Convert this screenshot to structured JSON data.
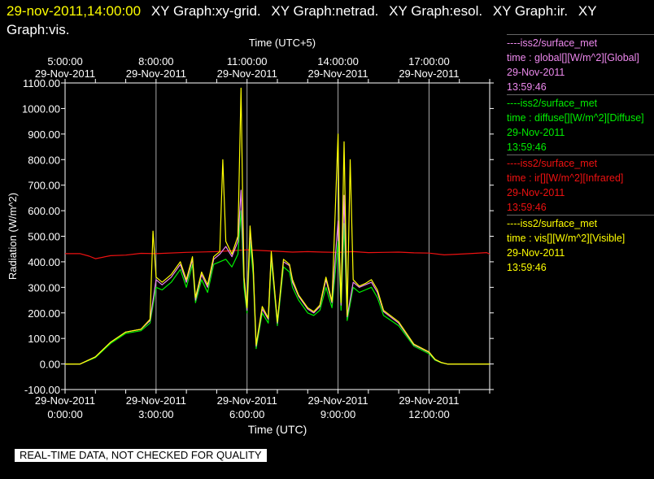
{
  "header": {
    "timestamp": "29-nov-2011,14:00:00",
    "graphs": [
      "XY Graph:xy-grid.",
      "XY Graph:netrad.",
      "XY Graph:esol.",
      "XY Graph:ir.",
      "XY Graph:vis."
    ]
  },
  "footer": {
    "notice": "REAL-TIME DATA, NOT CHECKED FOR QUALITY"
  },
  "legend": [
    {
      "source": "----iss2/surface_met",
      "label": "time : global[][W/m^2][Global]",
      "date": "29-Nov-2011",
      "time": "13:59:46",
      "color": "#ee88ee"
    },
    {
      "source": "----iss2/surface_met",
      "label": "time : diffuse[][W/m^2][Diffuse]",
      "date": "29-Nov-2011",
      "time": "13:59:46",
      "color": "#00ee00"
    },
    {
      "source": "----iss2/surface_met",
      "label": "time : ir[][W/m^2][Infrared]",
      "date": "29-Nov-2011",
      "time": "13:59:46",
      "color": "#ee1111"
    },
    {
      "source": "----iss2/surface_met",
      "label": "time : vis[][W/m^2][Visible]",
      "date": "29-Nov-2011",
      "time": "13:59:46",
      "color": "#ffff00"
    }
  ],
  "chart_data": {
    "type": "line",
    "ylabel": "Radiation (W/m^2)",
    "xlabel": "Time (UTC)",
    "top_xlabel": "Time (UTC+5)",
    "ylim": [
      -100,
      1100
    ],
    "xlim": [
      0,
      14
    ],
    "y_ticks": [
      -100,
      0,
      100,
      200,
      300,
      400,
      500,
      600,
      700,
      800,
      900,
      1000,
      1100
    ],
    "y_tick_labels": [
      "-100.00",
      "0.00",
      "100.00",
      "200.00",
      "300.00",
      "400.00",
      "500.00",
      "600.00",
      "700.00",
      "800.00",
      "900.00",
      "1000.00",
      "1100.00"
    ],
    "bottom_ticks": [
      {
        "x": 0,
        "date": "29-Nov-2011",
        "time": "0:00:00"
      },
      {
        "x": 3,
        "date": "29-Nov-2011",
        "time": "3:00:00"
      },
      {
        "x": 6,
        "date": "29-Nov-2011",
        "time": "6:00:00"
      },
      {
        "x": 9,
        "date": "29-Nov-2011",
        "time": "9:00:00"
      },
      {
        "x": 12,
        "date": "29-Nov-2011",
        "time": "12:00:00"
      }
    ],
    "top_ticks": [
      {
        "x": 0,
        "time": "5:00:00",
        "date": "29-Nov-2011"
      },
      {
        "x": 3,
        "time": "8:00:00",
        "date": "29-Nov-2011"
      },
      {
        "x": 6,
        "time": "11:00:00",
        "date": "29-Nov-2011"
      },
      {
        "x": 9,
        "time": "14:00:00",
        "date": "29-Nov-2011"
      },
      {
        "x": 12,
        "time": "17:00:00",
        "date": "29-Nov-2011"
      }
    ],
    "grid_x": [
      3,
      6,
      9,
      12
    ],
    "series": [
      {
        "name": "ir",
        "color": "#ee1111",
        "x": [
          0,
          0.5,
          0.8,
          1,
          1.5,
          2,
          2.5,
          3,
          4,
          5,
          6,
          6.5,
          7,
          7.5,
          8,
          8.5,
          9,
          9.5,
          10,
          10.5,
          11,
          11.5,
          12,
          12.5,
          13,
          13.5,
          13.9,
          14
        ],
        "y": [
          432,
          432,
          422,
          412,
          424,
          426,
          433,
          432,
          437,
          440,
          447,
          444,
          441,
          438,
          440,
          438,
          437,
          440,
          436,
          437,
          438,
          435,
          434,
          427,
          430,
          433,
          436,
          430
        ]
      },
      {
        "name": "diffuse",
        "color": "#00ee00",
        "x": [
          0,
          0.5,
          1,
          1.5,
          2,
          2.5,
          2.8,
          3,
          3.2,
          3.5,
          3.8,
          4,
          4.2,
          4.3,
          4.5,
          4.7,
          4.9,
          5.1,
          5.3,
          5.5,
          5.7,
          5.8,
          5.9,
          6,
          6.1,
          6.2,
          6.3,
          6.5,
          6.7,
          6.8,
          7,
          7.2,
          7.4,
          7.5,
          7.7,
          8,
          8.2,
          8.4,
          8.6,
          8.8,
          9,
          9.1,
          9.2,
          9.3,
          9.5,
          9.7,
          9.9,
          10.1,
          10.3,
          10.5,
          11,
          11.5,
          12,
          12.2,
          12.4,
          12.6,
          13,
          13.5,
          14
        ],
        "y": [
          0,
          0,
          25,
          80,
          120,
          130,
          160,
          300,
          290,
          320,
          370,
          300,
          390,
          240,
          330,
          280,
          390,
          400,
          410,
          380,
          430,
          600,
          300,
          200,
          480,
          350,
          60,
          200,
          160,
          410,
          150,
          380,
          360,
          300,
          250,
          200,
          190,
          210,
          300,
          220,
          480,
          210,
          550,
          170,
          300,
          280,
          290,
          300,
          260,
          190,
          150,
          70,
          40,
          15,
          5,
          0,
          0,
          0,
          0
        ]
      },
      {
        "name": "global",
        "color": "#ee88ee",
        "x": [
          0,
          0.5,
          1,
          1.5,
          2,
          2.5,
          2.8,
          3,
          3.2,
          3.5,
          3.8,
          4,
          4.2,
          4.3,
          4.5,
          4.7,
          4.9,
          5.1,
          5.3,
          5.5,
          5.7,
          5.8,
          5.9,
          6,
          6.1,
          6.2,
          6.3,
          6.5,
          6.7,
          6.8,
          7,
          7.2,
          7.4,
          7.5,
          7.7,
          8,
          8.2,
          8.4,
          8.6,
          8.8,
          9,
          9.1,
          9.2,
          9.3,
          9.5,
          9.7,
          9.9,
          10.1,
          10.3,
          10.5,
          11,
          11.5,
          12,
          12.2,
          12.4,
          12.6,
          13,
          13.5,
          14
        ],
        "y": [
          0,
          0,
          28,
          85,
          125,
          136,
          170,
          330,
          310,
          340,
          390,
          320,
          410,
          250,
          350,
          300,
          410,
          430,
          460,
          420,
          480,
          680,
          330,
          210,
          520,
          380,
          70,
          215,
          175,
          430,
          160,
          400,
          385,
          320,
          265,
          215,
          200,
          225,
          330,
          240,
          560,
          230,
          660,
          185,
          320,
          300,
          310,
          320,
          280,
          205,
          160,
          75,
          45,
          17,
          6,
          0,
          0,
          0,
          0
        ]
      },
      {
        "name": "vis",
        "color": "#ffff00",
        "x": [
          0,
          0.5,
          1,
          1.5,
          2,
          2.5,
          2.8,
          2.9,
          3,
          3.2,
          3.5,
          3.8,
          4,
          4.2,
          4.3,
          4.5,
          4.7,
          4.9,
          5.1,
          5.2,
          5.3,
          5.5,
          5.7,
          5.8,
          5.85,
          5.9,
          6,
          6.1,
          6.2,
          6.3,
          6.5,
          6.7,
          6.8,
          7,
          7.2,
          7.4,
          7.5,
          7.7,
          8,
          8.2,
          8.4,
          8.6,
          8.8,
          9,
          9.05,
          9.1,
          9.2,
          9.3,
          9.4,
          9.5,
          9.7,
          9.9,
          10.1,
          10.3,
          10.5,
          11,
          11.5,
          12,
          12.2,
          12.4,
          12.6,
          13,
          13.5,
          14
        ],
        "y": [
          0,
          0,
          28,
          85,
          125,
          136,
          175,
          520,
          340,
          320,
          350,
          400,
          330,
          420,
          260,
          360,
          310,
          420,
          440,
          800,
          480,
          430,
          500,
          1080,
          700,
          340,
          220,
          540,
          390,
          75,
          225,
          180,
          440,
          165,
          410,
          390,
          330,
          270,
          220,
          205,
          230,
          340,
          245,
          900,
          420,
          240,
          870,
          190,
          800,
          330,
          305,
          315,
          330,
          290,
          210,
          165,
          78,
          47,
          18,
          6,
          0,
          0,
          0,
          0
        ]
      }
    ]
  }
}
